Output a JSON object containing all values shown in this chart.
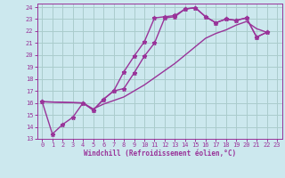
{
  "bg_color": "#cce8ee",
  "grid_color": "#aacccc",
  "line_color": "#993399",
  "xlabel": "Windchill (Refroidissement éolien,°C)",
  "xlim": [
    -0.5,
    23.5
  ],
  "ylim": [
    13,
    24.3
  ],
  "yticks": [
    13,
    14,
    15,
    16,
    17,
    18,
    19,
    20,
    21,
    22,
    23,
    24
  ],
  "xticks": [
    0,
    1,
    2,
    3,
    4,
    5,
    6,
    7,
    8,
    9,
    10,
    11,
    12,
    13,
    14,
    15,
    16,
    17,
    18,
    19,
    20,
    21,
    22,
    23
  ],
  "line1_x": [
    0,
    1,
    2,
    3,
    4,
    5,
    6,
    7,
    8,
    9,
    10,
    11,
    12,
    13,
    14,
    15,
    16,
    17,
    18,
    19,
    20,
    21,
    22
  ],
  "line1_y": [
    16.1,
    13.4,
    14.2,
    14.8,
    16.0,
    15.4,
    16.3,
    17.0,
    18.6,
    19.9,
    21.1,
    23.1,
    23.2,
    23.3,
    23.85,
    23.95,
    23.2,
    22.7,
    23.0,
    22.9,
    23.1,
    21.5,
    21.9
  ],
  "line2_x": [
    0,
    4,
    5,
    6,
    7,
    8,
    9,
    10,
    11,
    12,
    13,
    14,
    15,
    16,
    17,
    18,
    19,
    20,
    21,
    22
  ],
  "line2_y": [
    16.1,
    16.0,
    15.4,
    16.3,
    17.0,
    17.2,
    18.5,
    19.9,
    21.0,
    23.1,
    23.2,
    23.85,
    23.95,
    23.2,
    22.7,
    23.0,
    22.9,
    23.1,
    21.5,
    21.9
  ],
  "line3_x": [
    0,
    4,
    5,
    6,
    7,
    8,
    9,
    10,
    11,
    12,
    13,
    14,
    15,
    16,
    17,
    18,
    19,
    20,
    21,
    22
  ],
  "line3_y": [
    16.1,
    16.0,
    15.5,
    15.9,
    16.2,
    16.5,
    17.0,
    17.5,
    18.1,
    18.7,
    19.3,
    20.0,
    20.7,
    21.4,
    21.8,
    22.1,
    22.5,
    22.8,
    22.2,
    21.9
  ]
}
